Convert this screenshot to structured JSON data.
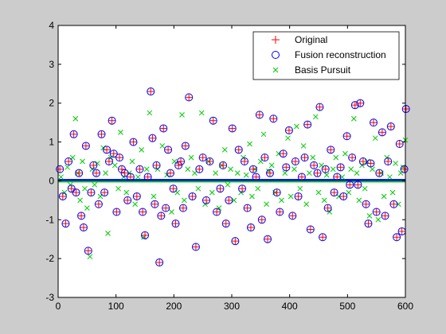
{
  "chart_data": {
    "type": "scatter",
    "title": "",
    "xlabel": "",
    "ylabel": "",
    "xlim": [
      0,
      600
    ],
    "ylim": [
      -3,
      4
    ],
    "x_ticks": [
      0,
      100,
      200,
      300,
      400,
      500,
      600
    ],
    "y_ticks": [
      -3,
      -2,
      -1,
      0,
      1,
      2,
      3,
      4
    ],
    "grid": false,
    "legend_position": "top-right",
    "background_color": "#cccccc",
    "axes_color": "#ffffff",
    "series": [
      {
        "name": "Original",
        "marker": "plus",
        "color": "#ff0000",
        "x": [
          3,
          8,
          13,
          18,
          23,
          27,
          31,
          36,
          40,
          44,
          48,
          52,
          57,
          61,
          66,
          70,
          75,
          80,
          84,
          88,
          93,
          96,
          101,
          106,
          110,
          115,
          120,
          125,
          130,
          136,
          141,
          146,
          150,
          155,
          160,
          163,
          167,
          170,
          175,
          178,
          182,
          186,
          190,
          194,
          199,
          203,
          208,
          212,
          216,
          220,
          226,
          232,
          238,
          244,
          250,
          256,
          262,
          268,
          274,
          280,
          285,
          290,
          295,
          301,
          306,
          312,
          318,
          322,
          327,
          333,
          337,
          342,
          348,
          352,
          357,
          362,
          366,
          372,
          378,
          383,
          389,
          394,
          399,
          405,
          410,
          415,
          421,
          426,
          431,
          436,
          442,
          448,
          452,
          457,
          462,
          466,
          471,
          477,
          482,
          488,
          493,
          499,
          504,
          508,
          513,
          518,
          522,
          527,
          532,
          536,
          540,
          545,
          550,
          555,
          560,
          565,
          570,
          575,
          580,
          585,
          590,
          594,
          598,
          601
        ],
        "y": [
          0.3,
          -0.4,
          -1.1,
          0.5,
          -0.2,
          1.2,
          -0.3,
          0.2,
          -0.9,
          -1.2,
          0.9,
          -1.8,
          -0.3,
          0.4,
          0.2,
          -0.6,
          1.2,
          -0.3,
          0.8,
          0.5,
          1.55,
          0.7,
          -0.8,
          0.6,
          0.3,
          0.2,
          -0.5,
          0.1,
          1.0,
          -0.4,
          0.3,
          -0.8,
          -1.4,
          0.1,
          2.3,
          1.1,
          -0.6,
          0.4,
          -2.1,
          -0.9,
          1.35,
          -0.7,
          0.8,
          0.2,
          -0.2,
          -1.1,
          0.4,
          0.5,
          -0.7,
          0.9,
          2.15,
          -0.4,
          -1.7,
          0.3,
          0.6,
          -0.5,
          0.5,
          1.55,
          -0.8,
          -0.2,
          0.4,
          -1.1,
          -0.5,
          1.35,
          -1.55,
          0.8,
          -0.2,
          0.5,
          -0.7,
          -1.2,
          0.3,
          0.1,
          1.7,
          -1.0,
          0.6,
          -1.5,
          0.2,
          1.6,
          -0.3,
          -0.8,
          0.7,
          0.35,
          1.3,
          -0.9,
          0.5,
          -0.4,
          0.1,
          0.6,
          1.45,
          -1.25,
          0.4,
          0.2,
          1.9,
          -1.45,
          0.3,
          -0.7,
          0.8,
          -0.3,
          0.1,
          0.35,
          -0.4,
          1.15,
          -0.1,
          0.6,
          1.95,
          -0.1,
          2.0,
          0.5,
          -0.6,
          -1.1,
          0.45,
          1.5,
          -0.8,
          0.2,
          1.25,
          -0.9,
          0.5,
          1.4,
          -0.6,
          -1.45,
          0.95,
          -1.3,
          0.3,
          1.85
        ]
      },
      {
        "name": "Fusion reconstruction",
        "marker": "circle",
        "color": "#0000ff",
        "x": [
          3,
          8,
          13,
          18,
          23,
          27,
          31,
          36,
          40,
          44,
          48,
          52,
          57,
          61,
          66,
          70,
          75,
          80,
          84,
          88,
          93,
          96,
          101,
          106,
          110,
          115,
          120,
          125,
          130,
          136,
          141,
          146,
          150,
          155,
          160,
          163,
          167,
          170,
          175,
          178,
          182,
          186,
          190,
          194,
          199,
          203,
          208,
          212,
          216,
          220,
          226,
          232,
          238,
          244,
          250,
          256,
          262,
          268,
          274,
          280,
          285,
          290,
          295,
          301,
          306,
          312,
          318,
          322,
          327,
          333,
          337,
          342,
          348,
          352,
          357,
          362,
          366,
          372,
          378,
          383,
          389,
          394,
          399,
          405,
          410,
          415,
          421,
          426,
          431,
          436,
          442,
          448,
          452,
          457,
          462,
          466,
          471,
          477,
          482,
          488,
          493,
          499,
          504,
          508,
          513,
          518,
          522,
          527,
          532,
          536,
          540,
          545,
          550,
          555,
          560,
          565,
          570,
          575,
          580,
          585,
          590,
          594,
          598,
          601
        ],
        "y": [
          0.3,
          -0.4,
          -1.1,
          0.5,
          -0.2,
          1.2,
          -0.3,
          0.2,
          -0.9,
          -1.2,
          0.9,
          -1.8,
          -0.3,
          0.4,
          0.2,
          -0.6,
          1.2,
          -0.3,
          0.8,
          0.5,
          1.55,
          0.7,
          -0.8,
          0.6,
          0.3,
          0.2,
          -0.5,
          0.1,
          1.0,
          -0.4,
          0.3,
          -0.8,
          -1.4,
          0.1,
          2.3,
          1.1,
          -0.6,
          0.4,
          -2.1,
          -0.9,
          1.35,
          -0.7,
          0.8,
          0.2,
          -0.2,
          -1.1,
          0.4,
          0.5,
          -0.7,
          0.9,
          2.15,
          -0.4,
          -1.7,
          0.3,
          0.6,
          -0.5,
          0.5,
          1.55,
          -0.8,
          -0.2,
          0.4,
          -1.1,
          -0.5,
          1.35,
          -1.55,
          0.8,
          -0.2,
          0.5,
          -0.7,
          -1.2,
          0.3,
          0.1,
          1.7,
          -1.0,
          0.6,
          -1.5,
          0.2,
          1.6,
          -0.3,
          -0.8,
          0.7,
          0.35,
          1.3,
          -0.9,
          0.5,
          -0.4,
          0.1,
          0.6,
          1.45,
          -1.25,
          0.4,
          0.2,
          1.9,
          -1.45,
          0.3,
          -0.7,
          0.8,
          -0.3,
          0.1,
          0.35,
          -0.4,
          1.15,
          -0.1,
          0.6,
          1.95,
          -0.1,
          2.0,
          0.5,
          -0.6,
          -1.1,
          0.45,
          1.5,
          -0.8,
          0.2,
          1.25,
          -0.9,
          0.5,
          1.4,
          -0.6,
          -1.45,
          0.95,
          -1.3,
          0.3,
          1.85
        ]
      },
      {
        "name": "Basis Pursuit",
        "marker": "x",
        "color": "#00cc00",
        "x": [
          5,
          11,
          16,
          21,
          25,
          30,
          34,
          38,
          42,
          46,
          50,
          55,
          59,
          63,
          68,
          73,
          78,
          82,
          86,
          91,
          98,
          104,
          108,
          113,
          118,
          123,
          128,
          133,
          138,
          144,
          148,
          153,
          158,
          165,
          172,
          180,
          188,
          196,
          201,
          206,
          214,
          218,
          224,
          230,
          236,
          242,
          248,
          254,
          260,
          266,
          272,
          278,
          283,
          288,
          293,
          298,
          304,
          310,
          316,
          320,
          325,
          331,
          335,
          340,
          345,
          350,
          355,
          360,
          364,
          369,
          375,
          381,
          386,
          392,
          397,
          402,
          408,
          412,
          418,
          424,
          429,
          434,
          440,
          445,
          450,
          455,
          460,
          464,
          469,
          475,
          480,
          485,
          491,
          496,
          502,
          506,
          511,
          516,
          520,
          525,
          530,
          534,
          538,
          543,
          548,
          553,
          558,
          563,
          568,
          573,
          578,
          583,
          588,
          592,
          596,
          600
        ],
        "y": [
          0.1,
          -0.3,
          0.35,
          -0.1,
          0.6,
          1.6,
          0.2,
          -0.5,
          0.5,
          -0.2,
          -0.7,
          -1.95,
          0.3,
          -0.1,
          0.45,
          -0.4,
          0.85,
          0.2,
          -1.35,
          0.6,
          0.4,
          -0.2,
          1.25,
          0.1,
          -0.3,
          0.2,
          0.5,
          -0.6,
          0.1,
          0.8,
          -1.45,
          0.3,
          1.75,
          -0.4,
          0.3,
          0.9,
          0.15,
          -0.8,
          0.5,
          -0.3,
          1.7,
          -0.5,
          0.3,
          0.6,
          0.2,
          -0.2,
          1.75,
          -0.6,
          0.5,
          -0.3,
          0.2,
          -0.7,
          0.4,
          0.8,
          -0.1,
          0.3,
          -0.5,
          0.2,
          -0.3,
          0.6,
          0.15,
          0.95,
          -0.4,
          0.3,
          -0.2,
          0.5,
          1.2,
          -0.6,
          0.25,
          0.4,
          -0.3,
          0.7,
          -0.5,
          0.2,
          1.1,
          -0.4,
          0.3,
          1.4,
          -0.2,
          0.9,
          -0.6,
          0.2,
          0.6,
          1.65,
          -0.3,
          0.4,
          -0.5,
          0.15,
          -0.8,
          0.3,
          0.6,
          -0.4,
          0.1,
          0.7,
          -0.3,
          0.3,
          1.6,
          0.2,
          -0.5,
          0.4,
          -0.2,
          0.5,
          -0.9,
          0.3,
          1.1,
          -1.0,
          0.2,
          -0.4,
          0.6,
          0.1,
          -0.3,
          0.45,
          -0.6,
          0.2,
          0.35,
          1.05
        ]
      }
    ]
  }
}
